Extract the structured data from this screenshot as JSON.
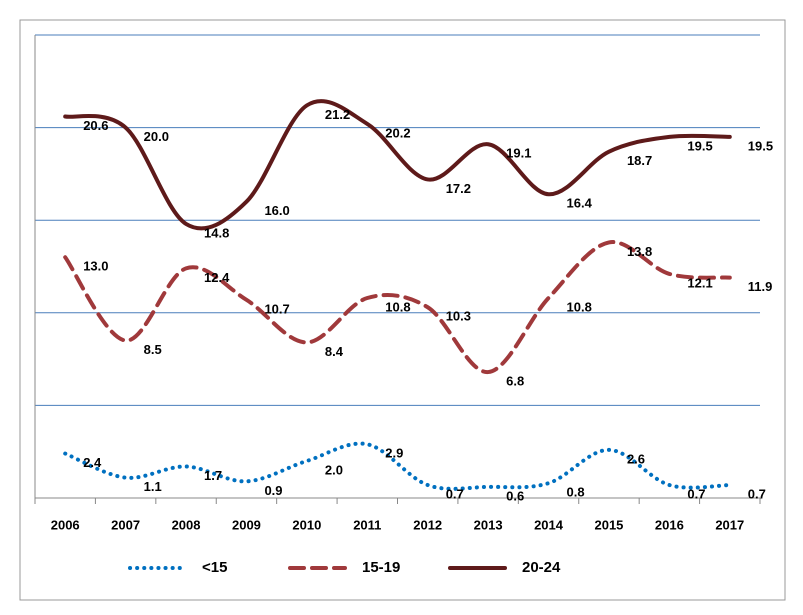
{
  "chart_data": {
    "type": "line",
    "categories": [
      "2006",
      "2007",
      "2008",
      "2009",
      "2010",
      "2011",
      "2012",
      "2013",
      "2014",
      "2015",
      "2016",
      "2017"
    ],
    "series": [
      {
        "name": "<15",
        "color": "#0070c0",
        "dash": "dotted",
        "values": [
          2.4,
          1.1,
          1.7,
          0.9,
          2.0,
          2.9,
          0.7,
          0.6,
          0.8,
          2.6,
          0.7,
          0.7
        ],
        "value_labels": [
          "2.4",
          "1.1",
          "1.7",
          "0.9",
          "2.0",
          "2.9",
          "0.7",
          "0.6",
          "0.8",
          "2.6",
          "0.7",
          "0.7"
        ]
      },
      {
        "name": "15-19",
        "color": "#a0393b",
        "dash": "dashed",
        "values": [
          13.0,
          8.5,
          12.4,
          10.7,
          8.4,
          10.8,
          10.3,
          6.8,
          10.8,
          13.8,
          12.1,
          11.9
        ],
        "value_labels": [
          "13.0",
          "8.5",
          "12.4",
          "10.7",
          "8.4",
          "10.8",
          "10.3",
          "6.8",
          "10.8",
          "13.8",
          "12.1",
          "11.9"
        ]
      },
      {
        "name": "20-24",
        "color": "#5e1a1a",
        "dash": "solid",
        "values": [
          20.6,
          20.0,
          14.8,
          16.0,
          21.2,
          20.2,
          17.2,
          19.1,
          16.4,
          18.7,
          19.5,
          19.5
        ],
        "value_labels": [
          "20.6",
          "20.0",
          "14.8",
          "16.0",
          "21.2",
          "20.2",
          "17.2",
          "19.1",
          "16.4",
          "18.7",
          "19.5",
          "19.5"
        ]
      }
    ],
    "ylim": [
      0,
      25
    ],
    "yticks": [
      0,
      5,
      10,
      15,
      20,
      25
    ],
    "ytick_labels": false,
    "grid": true,
    "legend": "bottom"
  }
}
